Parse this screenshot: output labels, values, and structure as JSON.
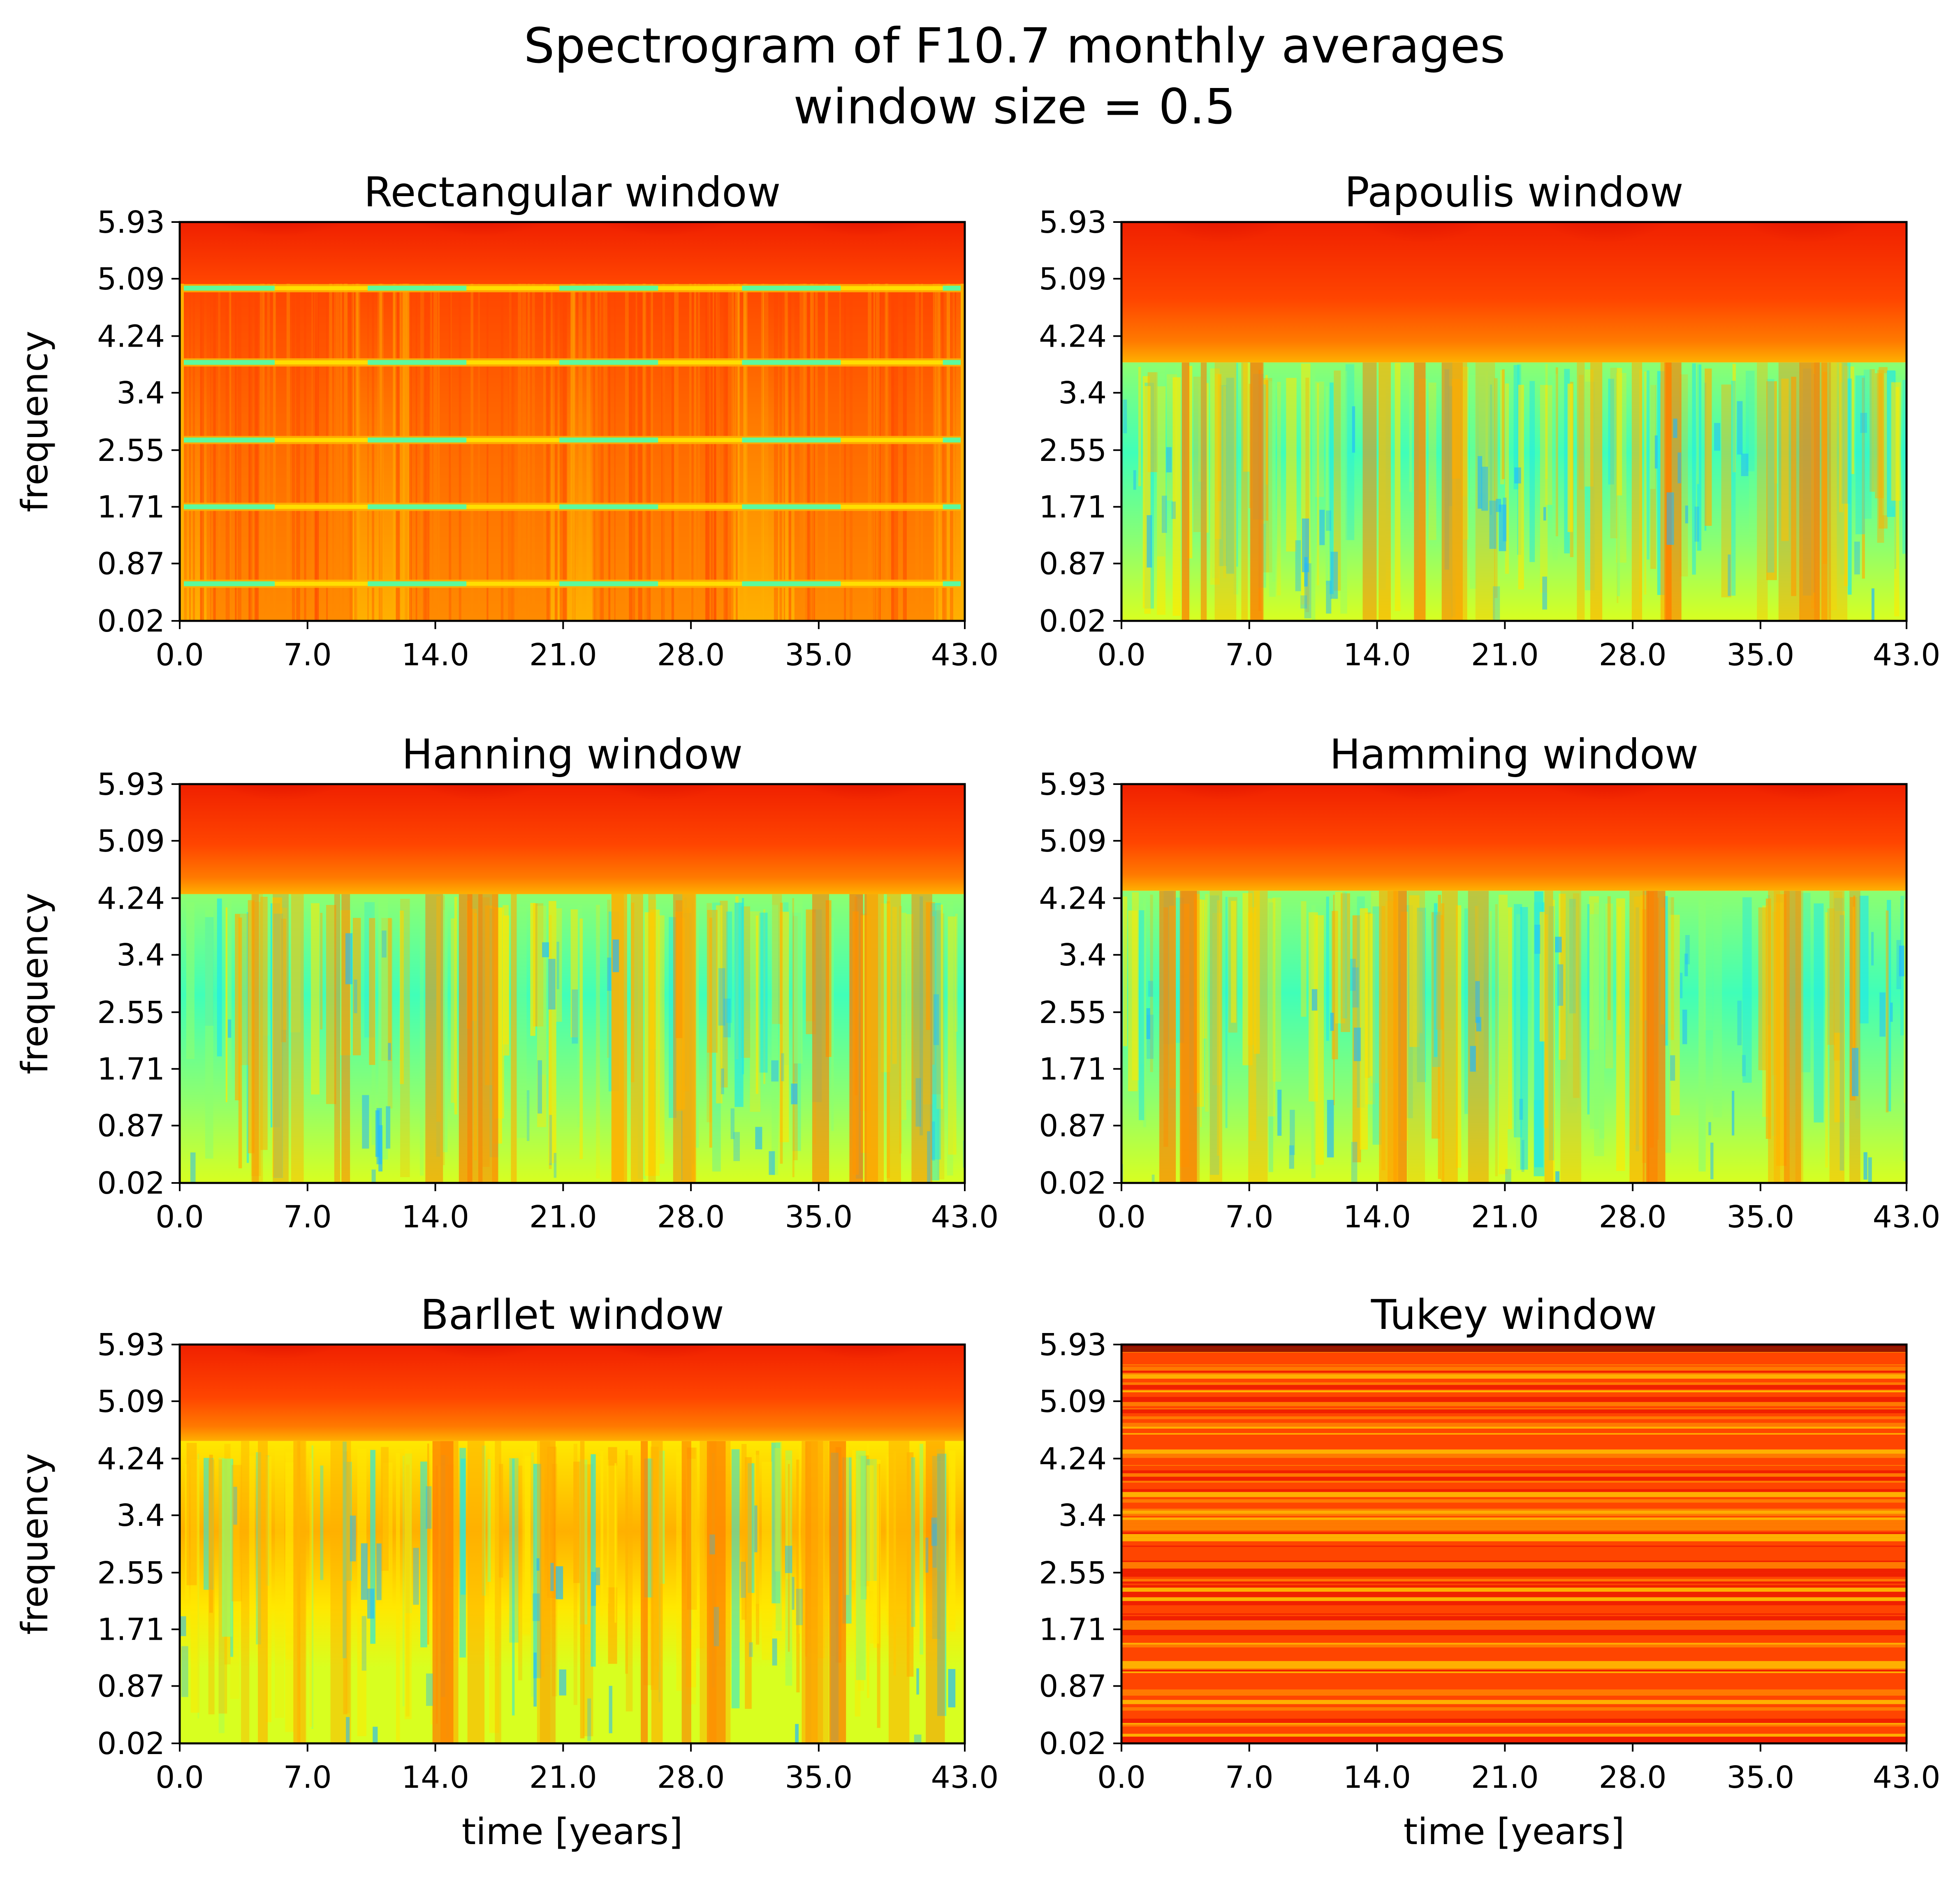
{
  "figure": {
    "title_line1": "Spectrogram of F10.7 monthly averages",
    "title_line2": "window size = 0.5"
  },
  "colors": {
    "deep_red": "#7a0000",
    "dark_red": "#c80000",
    "red": "#f02000",
    "red_orange": "#ff4500",
    "orange": "#ff7a00",
    "amber": "#ffb000",
    "yellow": "#ffe800",
    "yellow_green": "#d8ff20",
    "green": "#8cff70",
    "cyan_green": "#40ffb8",
    "cyan": "#20e8e8",
    "light_blue": "#20b8ff"
  },
  "chart_data": [
    {
      "type": "heatmap",
      "title": "Rectangular window",
      "xlabel": "",
      "ylabel": "frequency",
      "x_ticks": [
        "0.0",
        "7.0",
        "14.0",
        "21.0",
        "28.0",
        "35.0",
        "43.0"
      ],
      "y_ticks": [
        "0.02",
        "0.87",
        "1.71",
        "2.55",
        "3.4",
        "4.24",
        "5.09",
        "5.93"
      ],
      "xlim": [
        0,
        43
      ],
      "ylim": [
        0.02,
        5.93
      ],
      "colormap": "jet",
      "pattern": "rectangular",
      "bright_bands": [
        0.57,
        1.71,
        2.7,
        3.85,
        4.95
      ]
    },
    {
      "type": "heatmap",
      "title": "Papoulis window",
      "xlabel": "",
      "ylabel": "",
      "x_ticks": [
        "0.0",
        "7.0",
        "14.0",
        "21.0",
        "28.0",
        "35.0",
        "43.0"
      ],
      "y_ticks": [
        "0.02",
        "0.87",
        "1.71",
        "2.55",
        "3.4",
        "4.24",
        "5.09",
        "5.93"
      ],
      "xlim": [
        0,
        43
      ],
      "ylim": [
        0.02,
        5.93
      ],
      "colormap": "jet",
      "pattern": "smooth",
      "transition_frequency": 3.85
    },
    {
      "type": "heatmap",
      "title": "Hanning window",
      "xlabel": "",
      "ylabel": "frequency",
      "x_ticks": [
        "0.0",
        "7.0",
        "14.0",
        "21.0",
        "28.0",
        "35.0",
        "43.0"
      ],
      "y_ticks": [
        "0.02",
        "0.87",
        "1.71",
        "2.55",
        "3.4",
        "4.24",
        "5.09",
        "5.93"
      ],
      "xlim": [
        0,
        43
      ],
      "ylim": [
        0.02,
        5.93
      ],
      "colormap": "jet",
      "pattern": "smooth",
      "transition_frequency": 4.3
    },
    {
      "type": "heatmap",
      "title": "Hamming window",
      "xlabel": "",
      "ylabel": "",
      "x_ticks": [
        "0.0",
        "7.0",
        "14.0",
        "21.0",
        "28.0",
        "35.0",
        "43.0"
      ],
      "y_ticks": [
        "0.02",
        "0.87",
        "1.71",
        "2.55",
        "3.4",
        "4.24",
        "5.09",
        "5.93"
      ],
      "xlim": [
        0,
        43
      ],
      "ylim": [
        0.02,
        5.93
      ],
      "colormap": "jet",
      "pattern": "smooth",
      "transition_frequency": 4.35
    },
    {
      "type": "heatmap",
      "title": "Barllet window",
      "xlabel": "time [years]",
      "ylabel": "frequency",
      "x_ticks": [
        "0.0",
        "7.0",
        "14.0",
        "21.0",
        "28.0",
        "35.0",
        "43.0"
      ],
      "y_ticks": [
        "0.02",
        "0.87",
        "1.71",
        "2.55",
        "3.4",
        "4.24",
        "5.09",
        "5.93"
      ],
      "xlim": [
        0,
        43
      ],
      "ylim": [
        0.02,
        5.93
      ],
      "colormap": "jet",
      "pattern": "bartlett",
      "transition_frequency": 4.5
    },
    {
      "type": "heatmap",
      "title": "Tukey window",
      "xlabel": "time [years]",
      "ylabel": "",
      "x_ticks": [
        "0.0",
        "7.0",
        "14.0",
        "21.0",
        "28.0",
        "35.0",
        "43.0"
      ],
      "y_ticks": [
        "0.02",
        "0.87",
        "1.71",
        "2.55",
        "3.4",
        "4.24",
        "5.09",
        "5.93"
      ],
      "xlim": [
        0,
        43
      ],
      "ylim": [
        0.02,
        5.93
      ],
      "colormap": "jet",
      "pattern": "horizontal-stripes"
    }
  ]
}
